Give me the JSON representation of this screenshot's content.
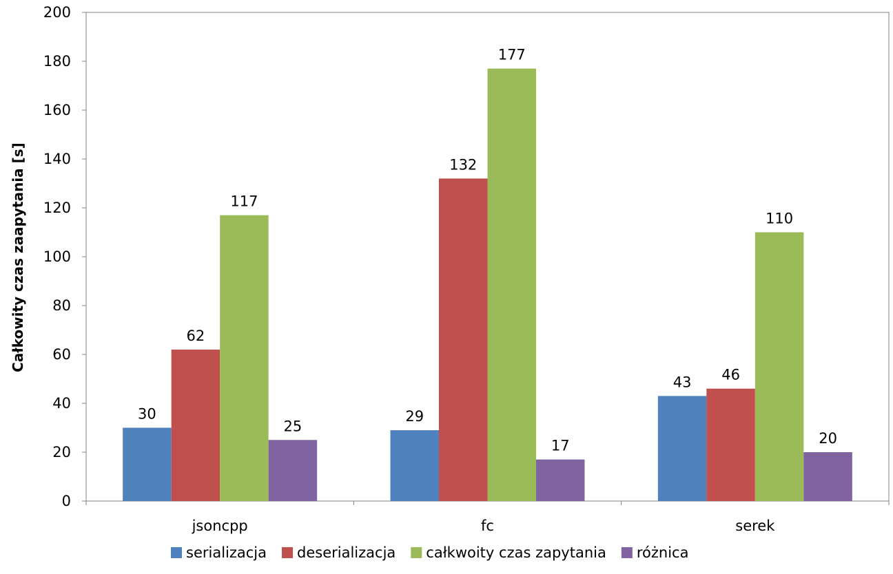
{
  "chart_data": {
    "type": "bar",
    "title": "",
    "xlabel": "",
    "ylabel": "Całkowity czas zaapytania [s]",
    "ylim": [
      0,
      200
    ],
    "ytick_step": 20,
    "yticks": [
      "0",
      "20",
      "40",
      "60",
      "80",
      "100",
      "120",
      "140",
      "160",
      "180",
      "200"
    ],
    "categories": [
      "jsoncpp",
      "fc",
      "serek"
    ],
    "series": [
      {
        "name": "serializacja",
        "color": "#4f81bd",
        "values": [
          30,
          29,
          43
        ]
      },
      {
        "name": "deserializacja",
        "color": "#c0504d",
        "values": [
          62,
          132,
          46
        ]
      },
      {
        "name": "całkwoity czas zapytania",
        "color": "#9bbb59",
        "values": [
          117,
          177,
          110
        ]
      },
      {
        "name": "różnica",
        "color": "#8064a2",
        "values": [
          25,
          17,
          20
        ]
      }
    ],
    "data_labels": true,
    "grid": false,
    "legend_position": "bottom"
  }
}
